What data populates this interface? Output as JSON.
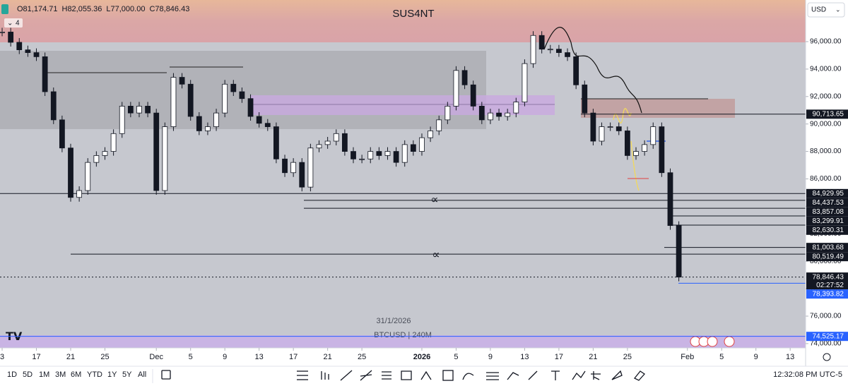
{
  "chart_data": {
    "type": "candlestick",
    "title": "SUS4NT",
    "ohlc": [
      "O81,174.71",
      "H82,055.36",
      "L77,000.00",
      "C78,846.43"
    ],
    "indicator_count": 4,
    "currency": "USD",
    "date_label": "31/1/2026",
    "symbol": "BTCUSD | 240M",
    "annotations": [
      "∝",
      "∝"
    ],
    "values": [
      96700,
      95950,
      95400,
      95200,
      94900,
      92350,
      90300,
      88250,
      84650,
      85150,
      87200,
      87700,
      88000,
      89300,
      91300,
      90800,
      91300,
      90800,
      85150,
      89800,
      93400,
      92900,
      90550,
      89500,
      89800,
      90800,
      92900,
      92350,
      91850,
      90550,
      90050,
      89800,
      87450,
      86450,
      87200,
      85400,
      88250,
      88500,
      88750,
      89300,
      88000,
      87450,
      87450,
      88000,
      87700,
      88000,
      87200,
      88500,
      88000,
      89000,
      89500,
      90300,
      91300,
      93900,
      92850,
      91300,
      90300,
      90800,
      90550,
      90800,
      91600,
      94400,
      96450,
      95450,
      95450,
      95200,
      94900,
      92850,
      90800,
      88750,
      89800,
      89800,
      89500,
      87700,
      88000,
      88500,
      89800,
      86450,
      82600,
      78846.43
    ],
    "color_up": "#ffffff",
    "color_down": "#131722",
    "xlim": [
      -0.25,
      93.8
    ],
    "xticks": [
      {
        "value": 0,
        "label": "3"
      },
      {
        "value": 4,
        "label": "17"
      },
      {
        "value": 8,
        "label": "21"
      },
      {
        "value": 12,
        "label": "25"
      },
      {
        "value": 18,
        "label": "Dec"
      },
      {
        "value": 22,
        "label": "5"
      },
      {
        "value": 26,
        "label": "9"
      },
      {
        "value": 30,
        "label": "13"
      },
      {
        "value": 34,
        "label": "17"
      },
      {
        "value": 38,
        "label": "21"
      },
      {
        "value": 42,
        "label": "25"
      },
      {
        "value": 49,
        "label": "2026"
      },
      {
        "value": 53,
        "label": "5"
      },
      {
        "value": 57,
        "label": "9"
      },
      {
        "value": 61,
        "label": "13"
      },
      {
        "value": 65,
        "label": "17"
      },
      {
        "value": 69,
        "label": "21"
      },
      {
        "value": 73,
        "label": "25"
      },
      {
        "value": 80,
        "label": "Feb"
      },
      {
        "value": 84,
        "label": "5"
      },
      {
        "value": 88,
        "label": "9"
      },
      {
        "value": 92,
        "label": "13"
      }
    ],
    "ylim": [
      73686,
      99033
    ],
    "yticks": [
      {
        "value": 74000,
        "label": "74,000.00"
      },
      {
        "value": 76000,
        "label": "76,000.00"
      },
      {
        "value": 78000,
        "label": "78,000.00"
      },
      {
        "value": 80000,
        "label": "80,000.00"
      },
      {
        "value": 82000,
        "label": "82,000.00"
      },
      {
        "value": 84000,
        "label": "84,000.00"
      },
      {
        "value": 86000,
        "label": "86,000.00"
      },
      {
        "value": 88000,
        "label": "88,000.00"
      },
      {
        "value": 90000,
        "label": "90,000.00"
      },
      {
        "value": 92000,
        "label": "92,000.00"
      },
      {
        "value": 94000,
        "label": "94,000.00"
      },
      {
        "value": 96000,
        "label": "96,000.00"
      }
    ],
    "levels": [
      {
        "value": 90713.65,
        "label": "90,713.65",
        "color": "#131722"
      },
      {
        "value": 84929.95,
        "label": "84,929.95",
        "color": "#131722"
      },
      {
        "value": 84437.53,
        "label": "84,437.53",
        "color": "#131722"
      },
      {
        "value": 83857.08,
        "label": "83,857.08",
        "color": "#131722"
      },
      {
        "value": 83299.91,
        "label": "83,299.91",
        "color": "#131722"
      },
      {
        "value": 82630.31,
        "label": "82,630.31",
        "color": "#131722"
      },
      {
        "value": 81003.68,
        "label": "81,003.68",
        "color": "#131722"
      },
      {
        "value": 80519.49,
        "label": "80,519.49",
        "color": "#131722"
      },
      {
        "value": 78846.43,
        "label": "78,846.43",
        "color": "#131722"
      },
      {
        "value": 78393.82,
        "label": "78,393.82",
        "color": "#2962ff"
      },
      {
        "value": 74525.17,
        "label": "74,525.17",
        "color": "#2962ff"
      }
    ],
    "countdown": "02:27:52"
  },
  "toolbar": {
    "ranges": [
      "1D",
      "5D",
      "1M",
      "3M",
      "6M",
      "YTD",
      "1Y",
      "5Y",
      "All"
    ],
    "clock": "12:32:08 PM UTC-5"
  }
}
